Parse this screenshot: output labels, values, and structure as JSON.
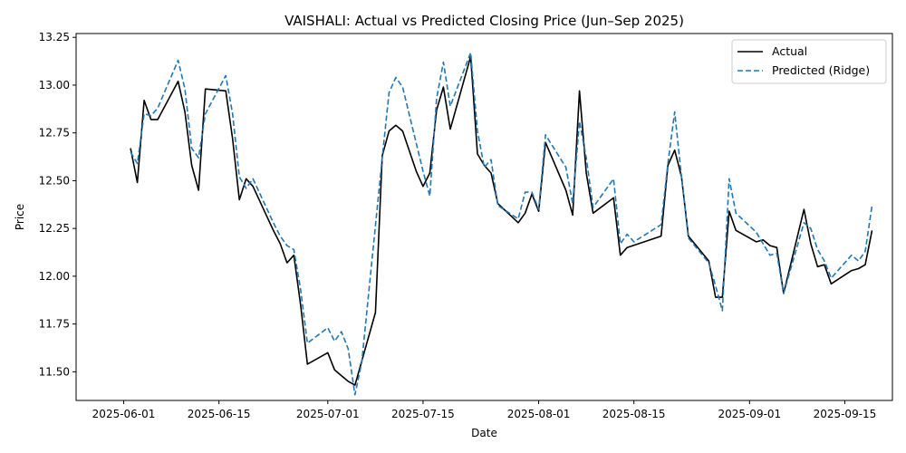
{
  "chart_data": {
    "type": "line",
    "title": "VAISHALI: Actual vs Predicted Closing Price (Jun–Sep 2025)",
    "xlabel": "Date",
    "ylabel": "Price",
    "xlim": [
      "2025-05-25",
      "2025-09-22"
    ],
    "ylim": [
      11.35,
      13.27
    ],
    "x_ticks": [
      "2025-06-01",
      "2025-06-15",
      "2025-07-01",
      "2025-07-15",
      "2025-08-01",
      "2025-08-15",
      "2025-09-01",
      "2025-09-15"
    ],
    "y_ticks": [
      11.5,
      11.75,
      12.0,
      12.25,
      12.5,
      12.75,
      13.0,
      13.25
    ],
    "grid": false,
    "legend_position": "top-right",
    "series": [
      {
        "name": "Actual",
        "color": "#000000",
        "style": "solid",
        "points": [
          [
            "2025-06-02",
            12.67
          ],
          [
            "2025-06-03",
            12.49
          ],
          [
            "2025-06-04",
            12.92
          ],
          [
            "2025-06-05",
            12.82
          ],
          [
            "2025-06-06",
            12.82
          ],
          [
            "2025-06-09",
            13.02
          ],
          [
            "2025-06-10",
            12.86
          ],
          [
            "2025-06-11",
            12.58
          ],
          [
            "2025-06-12",
            12.45
          ],
          [
            "2025-06-13",
            12.98
          ],
          [
            "2025-06-16",
            12.97
          ],
          [
            "2025-06-17",
            12.72
          ],
          [
            "2025-06-18",
            12.4
          ],
          [
            "2025-06-19",
            12.51
          ],
          [
            "2025-06-20",
            12.47
          ],
          [
            "2025-06-23",
            12.24
          ],
          [
            "2025-06-24",
            12.17
          ],
          [
            "2025-06-25",
            12.07
          ],
          [
            "2025-06-26",
            12.11
          ],
          [
            "2025-06-27",
            11.85
          ],
          [
            "2025-06-28",
            11.54
          ],
          [
            "2025-07-01",
            11.6
          ],
          [
            "2025-07-02",
            11.51
          ],
          [
            "2025-07-03",
            11.48
          ],
          [
            "2025-07-04",
            11.45
          ],
          [
            "2025-07-05",
            11.43
          ],
          [
            "2025-07-08",
            11.81
          ],
          [
            "2025-07-09",
            12.63
          ],
          [
            "2025-07-10",
            12.76
          ],
          [
            "2025-07-11",
            12.79
          ],
          [
            "2025-07-12",
            12.76
          ],
          [
            "2025-07-14",
            12.55
          ],
          [
            "2025-07-15",
            12.47
          ],
          [
            "2025-07-16",
            12.54
          ],
          [
            "2025-07-17",
            12.87
          ],
          [
            "2025-07-18",
            12.99
          ],
          [
            "2025-07-19",
            12.77
          ],
          [
            "2025-07-22",
            13.15
          ],
          [
            "2025-07-23",
            12.64
          ],
          [
            "2025-07-24",
            12.58
          ],
          [
            "2025-07-25",
            12.54
          ],
          [
            "2025-07-26",
            12.38
          ],
          [
            "2025-07-29",
            12.28
          ],
          [
            "2025-07-30",
            12.33
          ],
          [
            "2025-07-31",
            12.43
          ],
          [
            "2025-08-01",
            12.34
          ],
          [
            "2025-08-02",
            12.7
          ],
          [
            "2025-08-05",
            12.45
          ],
          [
            "2025-08-06",
            12.32
          ],
          [
            "2025-08-07",
            12.97
          ],
          [
            "2025-08-08",
            12.54
          ],
          [
            "2025-08-09",
            12.33
          ],
          [
            "2025-08-12",
            12.41
          ],
          [
            "2025-08-13",
            12.11
          ],
          [
            "2025-08-14",
            12.15
          ],
          [
            "2025-08-19",
            12.21
          ],
          [
            "2025-08-20",
            12.58
          ],
          [
            "2025-08-21",
            12.66
          ],
          [
            "2025-08-22",
            12.52
          ],
          [
            "2025-08-23",
            12.21
          ],
          [
            "2025-08-26",
            12.08
          ],
          [
            "2025-08-27",
            11.89
          ],
          [
            "2025-08-28",
            11.89
          ],
          [
            "2025-08-29",
            12.34
          ],
          [
            "2025-08-30",
            12.24
          ],
          [
            "2025-09-02",
            12.18
          ],
          [
            "2025-09-03",
            12.19
          ],
          [
            "2025-09-04",
            12.16
          ],
          [
            "2025-09-05",
            12.15
          ],
          [
            "2025-09-06",
            11.91
          ],
          [
            "2025-09-09",
            12.35
          ],
          [
            "2025-09-10",
            12.17
          ],
          [
            "2025-09-11",
            12.05
          ],
          [
            "2025-09-12",
            12.06
          ],
          [
            "2025-09-13",
            11.96
          ],
          [
            "2025-09-16",
            12.03
          ],
          [
            "2025-09-17",
            12.04
          ],
          [
            "2025-09-18",
            12.06
          ],
          [
            "2025-09-19",
            12.24
          ]
        ]
      },
      {
        "name": "Predicted (Ridge)",
        "color": "#1f77b4",
        "style": "dashed",
        "points": [
          [
            "2025-06-02",
            12.65
          ],
          [
            "2025-06-03",
            12.59
          ],
          [
            "2025-06-04",
            12.85
          ],
          [
            "2025-06-05",
            12.84
          ],
          [
            "2025-06-06",
            12.88
          ],
          [
            "2025-06-09",
            13.13
          ],
          [
            "2025-06-10",
            12.98
          ],
          [
            "2025-06-11",
            12.67
          ],
          [
            "2025-06-12",
            12.62
          ],
          [
            "2025-06-13",
            12.85
          ],
          [
            "2025-06-16",
            13.05
          ],
          [
            "2025-06-17",
            12.85
          ],
          [
            "2025-06-18",
            12.52
          ],
          [
            "2025-06-19",
            12.46
          ],
          [
            "2025-06-20",
            12.51
          ],
          [
            "2025-06-23",
            12.28
          ],
          [
            "2025-06-24",
            12.21
          ],
          [
            "2025-06-25",
            12.16
          ],
          [
            "2025-06-26",
            12.14
          ],
          [
            "2025-06-27",
            11.93
          ],
          [
            "2025-06-28",
            11.65
          ],
          [
            "2025-07-01",
            11.73
          ],
          [
            "2025-07-02",
            11.66
          ],
          [
            "2025-07-03",
            11.71
          ],
          [
            "2025-07-04",
            11.62
          ],
          [
            "2025-07-05",
            11.38
          ],
          [
            "2025-07-06",
            11.55
          ],
          [
            "2025-07-09",
            12.62
          ],
          [
            "2025-07-10",
            12.96
          ],
          [
            "2025-07-11",
            13.04
          ],
          [
            "2025-07-12",
            12.99
          ],
          [
            "2025-07-15",
            12.55
          ],
          [
            "2025-07-16",
            12.42
          ],
          [
            "2025-07-17",
            12.93
          ],
          [
            "2025-07-18",
            13.12
          ],
          [
            "2025-07-19",
            12.89
          ],
          [
            "2025-07-22",
            13.17
          ],
          [
            "2025-07-23",
            12.76
          ],
          [
            "2025-07-24",
            12.57
          ],
          [
            "2025-07-25",
            12.61
          ],
          [
            "2025-07-26",
            12.37
          ],
          [
            "2025-07-29",
            12.3
          ],
          [
            "2025-07-30",
            12.44
          ],
          [
            "2025-07-31",
            12.44
          ],
          [
            "2025-08-01",
            12.35
          ],
          [
            "2025-08-02",
            12.74
          ],
          [
            "2025-08-05",
            12.57
          ],
          [
            "2025-08-06",
            12.38
          ],
          [
            "2025-08-07",
            12.81
          ],
          [
            "2025-08-08",
            12.62
          ],
          [
            "2025-08-09",
            12.36
          ],
          [
            "2025-08-12",
            12.51
          ],
          [
            "2025-08-13",
            12.17
          ],
          [
            "2025-08-14",
            12.22
          ],
          [
            "2025-08-15",
            12.18
          ],
          [
            "2025-08-19",
            12.27
          ],
          [
            "2025-08-20",
            12.59
          ],
          [
            "2025-08-21",
            12.86
          ],
          [
            "2025-08-22",
            12.52
          ],
          [
            "2025-08-23",
            12.2
          ],
          [
            "2025-08-26",
            12.07
          ],
          [
            "2025-08-27",
            11.95
          ],
          [
            "2025-08-28",
            11.82
          ],
          [
            "2025-08-29",
            12.51
          ],
          [
            "2025-08-30",
            12.33
          ],
          [
            "2025-09-02",
            12.23
          ],
          [
            "2025-09-03",
            12.17
          ],
          [
            "2025-09-04",
            12.11
          ],
          [
            "2025-09-05",
            12.12
          ],
          [
            "2025-09-06",
            11.91
          ],
          [
            "2025-09-09",
            12.28
          ],
          [
            "2025-09-10",
            12.25
          ],
          [
            "2025-09-11",
            12.14
          ],
          [
            "2025-09-12",
            12.08
          ],
          [
            "2025-09-13",
            11.99
          ],
          [
            "2025-09-16",
            12.11
          ],
          [
            "2025-09-17",
            12.08
          ],
          [
            "2025-09-18",
            12.13
          ],
          [
            "2025-09-19",
            12.37
          ]
        ]
      }
    ]
  }
}
